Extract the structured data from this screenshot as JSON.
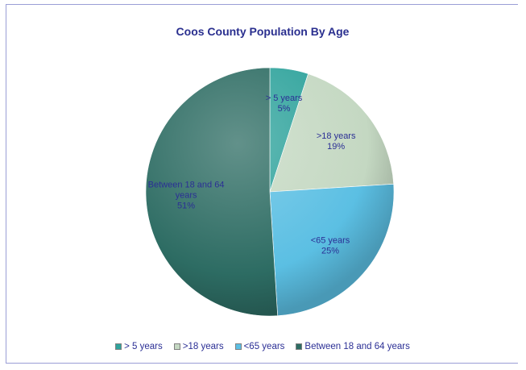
{
  "chart_data": {
    "type": "pie",
    "title": "Coos County Population By Age",
    "slices": [
      {
        "name": "> 5 years",
        "label_lines": [
          "> 5 years"
        ],
        "value": 5,
        "value_label": "5%",
        "color": "#2fa39c"
      },
      {
        "name": ">18 years",
        "label_lines": [
          ">18 years"
        ],
        "value": 19,
        "value_label": "19%",
        "color": "#c4d8c2"
      },
      {
        "name": "<65 years",
        "label_lines": [
          "<65 years"
        ],
        "value": 25,
        "value_label": "25%",
        "color": "#5bbfe3"
      },
      {
        "name": "Between 18 and 64 years",
        "label_lines": [
          "Between 18 and 64",
          "years"
        ],
        "value": 51,
        "value_label": "51%",
        "color": "#2d6c63"
      }
    ],
    "legend_position": "bottom"
  }
}
